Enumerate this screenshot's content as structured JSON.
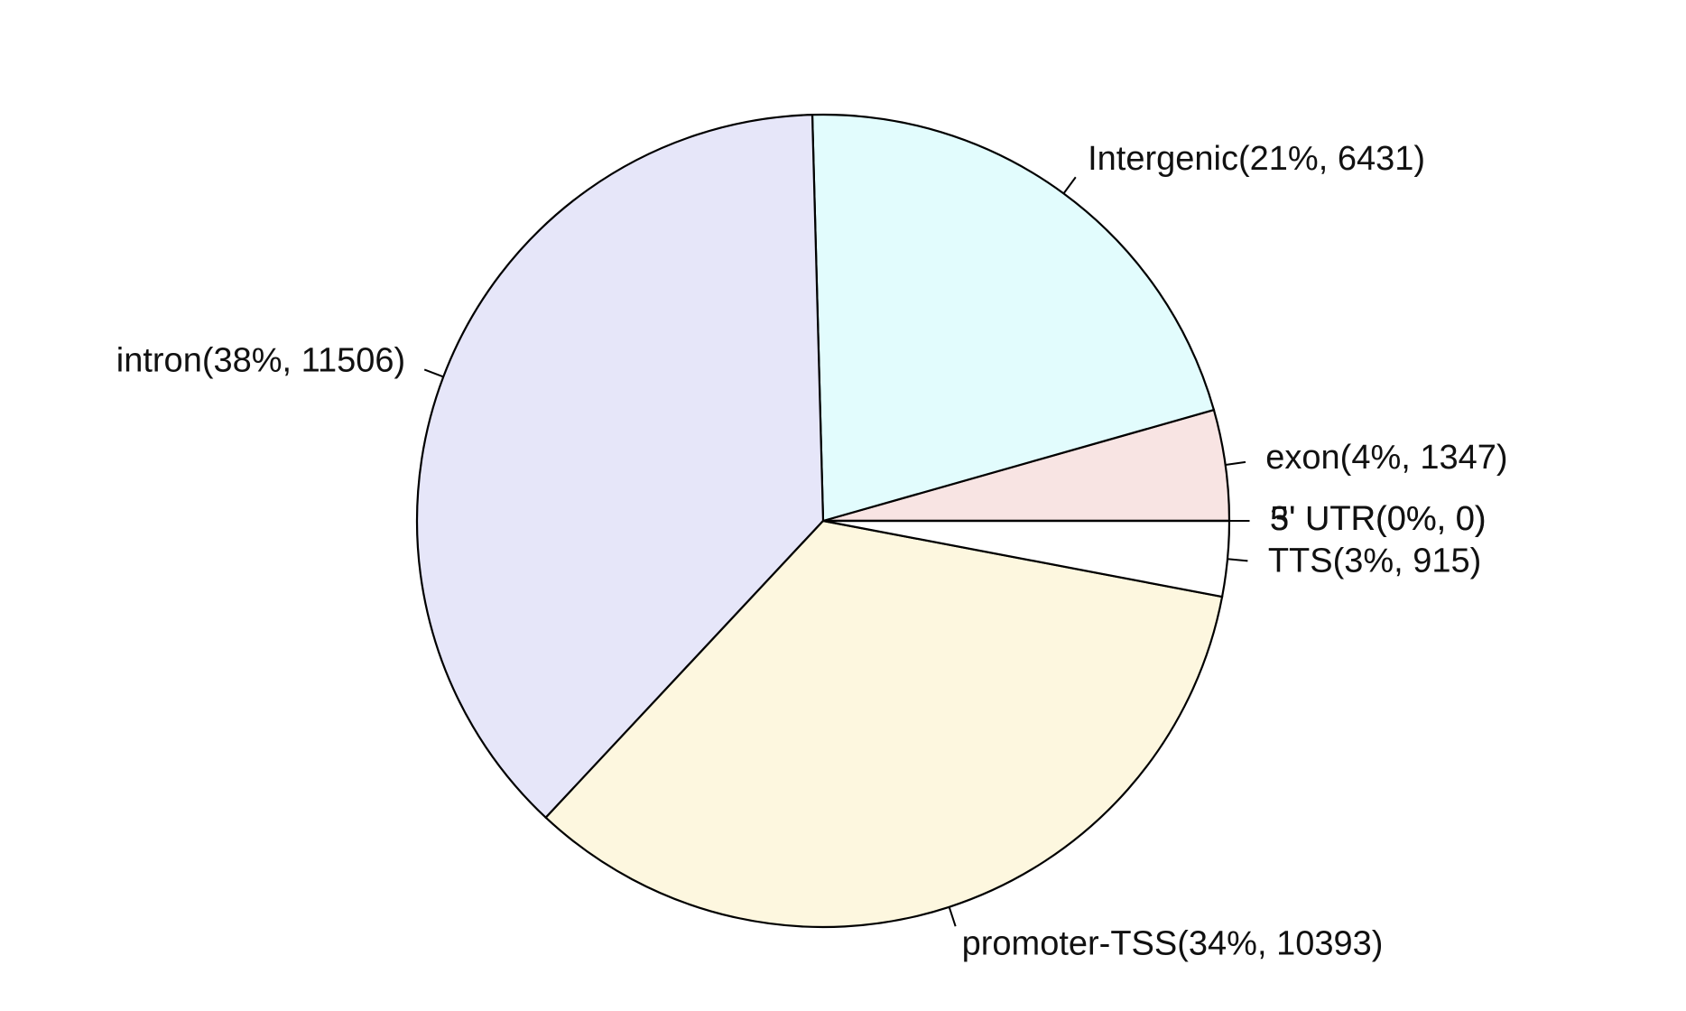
{
  "chart_data": {
    "type": "pie",
    "direction": "counterclockwise",
    "start": "right",
    "slices": [
      {
        "label": "3' UTR(0%, 0)",
        "value": 0,
        "color": "#ffffff"
      },
      {
        "label": "exon(4%, 1347)",
        "value": 1347,
        "color": "#f8e4e3"
      },
      {
        "label": "Intergenic(21%, 6431)",
        "value": 6431,
        "color": "#e2fcfd"
      },
      {
        "label": "intron(38%, 11506)",
        "value": 11506,
        "color": "#e6e6f9"
      },
      {
        "label": "promoter-TSS(34%, 10393)",
        "value": 10393,
        "color": "#fdf7df"
      },
      {
        "label": "TTS(3%, 915)",
        "value": 915,
        "color": "#ffffff"
      },
      {
        "label": "5' UTR(0%, 0)",
        "value": 0,
        "color": "#ffffff"
      }
    ]
  }
}
